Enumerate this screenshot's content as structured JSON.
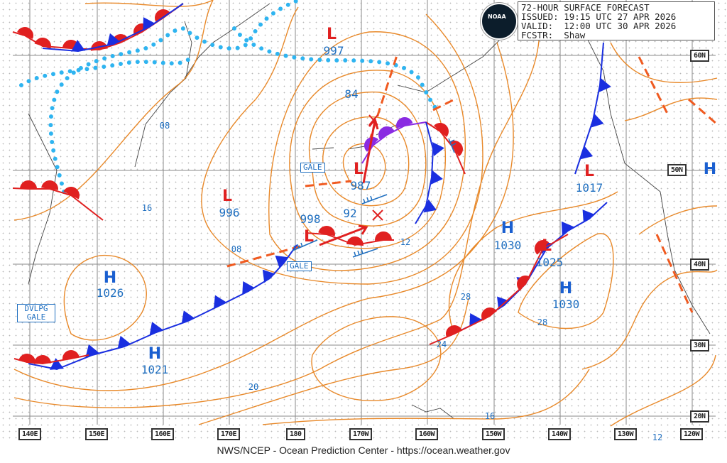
{
  "header": {
    "title": "72-HOUR SURFACE FORECAST",
    "issued": "ISSUED: 19:15 UTC 27 APR 2026",
    "valid": "VALID:  12:00 UTC 30 APR 2026",
    "forecaster": "FCSTR:  Shaw",
    "logo_text": "NOAA"
  },
  "longitude_labels": [
    "140E",
    "150E",
    "160E",
    "170E",
    "180",
    "170W",
    "160W",
    "150W",
    "140W",
    "130W",
    "120W"
  ],
  "latitude_labels": [
    "60N",
    "50N",
    "40N",
    "30N",
    "20N"
  ],
  "pressure_centers": {
    "low_997": {
      "type": "L",
      "value": "997"
    },
    "low_987": {
      "type": "L",
      "value": "987"
    },
    "low_996": {
      "type": "L",
      "value": "996"
    },
    "low_998": {
      "type": "L",
      "value": "998"
    },
    "low_1017": {
      "type": "L",
      "value": "1017"
    },
    "low_1025": {
      "type": "L",
      "value": "1025"
    },
    "high_1030a": {
      "type": "H",
      "value": "1030"
    },
    "high_1030b": {
      "type": "H",
      "value": "1030"
    },
    "high_1026": {
      "type": "H",
      "value": "1026"
    },
    "high_1021": {
      "type": "H",
      "value": "1021"
    },
    "high_edge": {
      "type": "H"
    }
  },
  "isobar_labels": [
    "84",
    "92",
    "08",
    "16",
    "08",
    "12",
    "20",
    "28",
    "28",
    "24",
    "16",
    "12"
  ],
  "warnings": [
    "GALE",
    "GALE",
    "DVLPG GALE"
  ],
  "colors": {
    "isobar": "#e8892a",
    "low": "#e02020",
    "high": "#1a5fd0",
    "cold_front": "#1a2fe0",
    "warm_front": "#e02020",
    "occluded": "#8a2be2",
    "ice_edge": "#2fb4f0",
    "trough": "#f05a20"
  },
  "credit": "NWS/NCEP - Ocean Prediction Center - https://ocean.weather.gov"
}
